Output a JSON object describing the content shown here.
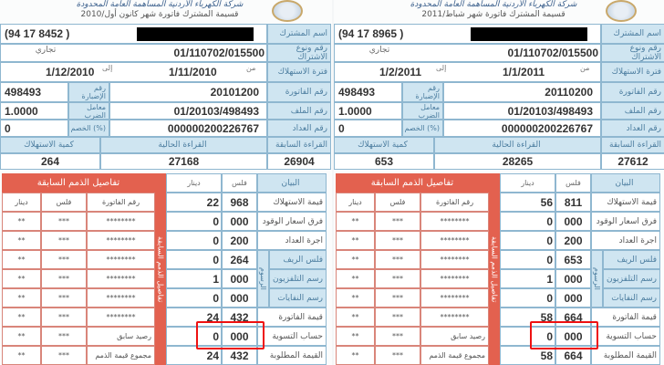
{
  "bills": [
    {
      "header": {
        "title": "شركة الكهرباء الأردنية المساهمة العامة المحدودة",
        "subtitle": "قسيمة المشترك فاتورة شهر كانون أول/2010"
      },
      "labels": {
        "name": "اسم المشترك",
        "subscription": "رقم ونوع الاشتراك",
        "period": "فترة الاستهلاك",
        "invoice": "رقم الفاتورة",
        "file": "رقم الملف",
        "meter": "رقم العداد",
        "prev_reading": "القراءة السابقة",
        "curr_reading": "القراءة الحالية",
        "consumption": "كمية الاستهلاك",
        "reading_ref": "رقم الإضبارة",
        "multiplier": "معامل الضرب",
        "discount": "الخصم (%)",
        "from": "من",
        "to": "إلى"
      },
      "phone": "(94 17 8452 )",
      "subscription_no": "01/110702/015500",
      "subscription_type": "تجاري",
      "period_from": "1/11/2010",
      "period_to": "1/12/2010",
      "invoice_no": "20101200",
      "reading_ref": "498493",
      "file_no": "01/20103/498493",
      "multiplier": "1.0000",
      "meter_no": "000000200226767",
      "discount": "0",
      "prev_reading": "26904",
      "curr_reading": "27168",
      "consumption": "264",
      "charges_headers": {
        "item": "البيان",
        "fils": "فلس",
        "dinar": "دينار",
        "fees_group": "الرسوم"
      },
      "charges": [
        {
          "label": "قيمة الاستهلاك",
          "dinar": "22",
          "fils": "968"
        },
        {
          "label": "فرق اسعار الوقود",
          "dinar": "0",
          "fils": "000"
        },
        {
          "label": "اجرة العداد",
          "dinar": "0",
          "fils": "200"
        },
        {
          "label": "فلس الريف",
          "dinar": "0",
          "fils": "264"
        },
        {
          "label": "رسم التلفزيون",
          "dinar": "1",
          "fils": "000"
        },
        {
          "label": "رسم النفايات",
          "dinar": "0",
          "fils": "000"
        },
        {
          "label": "قيمة الفاتورة",
          "dinar": "24",
          "fils": "432"
        },
        {
          "label": "حساب التسوية",
          "dinar": "0",
          "fils": "000"
        },
        {
          "label": "القيمة المطلوبة",
          "dinar": "24",
          "fils": "432"
        }
      ],
      "dues": {
        "title": "تفاصيل الذمم السابقة",
        "side_label": "تفاصيل الذمم السابقة",
        "headers": {
          "invoice": "رقم الفاتورة",
          "fils": "فلس",
          "dinar": "دينار"
        },
        "rows": [
          {
            "invoice": "********",
            "fils": "***",
            "dinar": "**"
          },
          {
            "invoice": "********",
            "fils": "***",
            "dinar": "**"
          },
          {
            "invoice": "********",
            "fils": "***",
            "dinar": "**"
          },
          {
            "invoice": "********",
            "fils": "***",
            "dinar": "**"
          },
          {
            "invoice": "********",
            "fils": "***",
            "dinar": "**"
          },
          {
            "invoice": "********",
            "fils": "***",
            "dinar": "**"
          },
          {
            "invoice": "رصيد سابق",
            "fils": "***",
            "dinar": "**"
          },
          {
            "invoice": "مجموع قيمة الذمم",
            "fils": "***",
            "dinar": "**"
          }
        ]
      }
    },
    {
      "header": {
        "title": "شركة الكهرباء الأردنية المساهمة العامة المحدودة",
        "subtitle": "قسيمة المشترك فاتورة شهر شباط/2011"
      },
      "labels": {
        "name": "اسم المشترك",
        "subscription": "رقم ونوع الاشتراك",
        "period": "فترة الاستهلاك",
        "invoice": "رقم الفاتورة",
        "file": "رقم الملف",
        "meter": "رقم العداد",
        "prev_reading": "القراءة السابقة",
        "curr_reading": "القراءة الحالية",
        "consumption": "كمية الاستهلاك",
        "reading_ref": "رقم الإضبارة",
        "multiplier": "معامل الضرب",
        "discount": "الخصم (%)",
        "from": "من",
        "to": "إلى"
      },
      "phone": "(94 17 8965 )",
      "subscription_no": "01/110702/015500",
      "subscription_type": "تجاري",
      "period_from": "1/1/2011",
      "period_to": "1/2/2011",
      "invoice_no": "20110200",
      "reading_ref": "498493",
      "file_no": "01/20103/498493",
      "multiplier": "1.0000",
      "meter_no": "000000200226767",
      "discount": "0",
      "prev_reading": "27612",
      "curr_reading": "28265",
      "consumption": "653",
      "charges_headers": {
        "item": "البيان",
        "fils": "فلس",
        "dinar": "دينار",
        "fees_group": "الرسوم"
      },
      "charges": [
        {
          "label": "قيمة الاستهلاك",
          "dinar": "56",
          "fils": "811"
        },
        {
          "label": "فرق اسعار الوقود",
          "dinar": "0",
          "fils": "000"
        },
        {
          "label": "اجرة العداد",
          "dinar": "0",
          "fils": "200"
        },
        {
          "label": "فلس الريف",
          "dinar": "0",
          "fils": "653"
        },
        {
          "label": "رسم التلفزيون",
          "dinar": "1",
          "fils": "000"
        },
        {
          "label": "رسم النفايات",
          "dinar": "0",
          "fils": "000"
        },
        {
          "label": "قيمة الفاتورة",
          "dinar": "58",
          "fils": "664"
        },
        {
          "label": "حساب التسوية",
          "dinar": "0",
          "fils": "000"
        },
        {
          "label": "القيمة المطلوبة",
          "dinar": "58",
          "fils": "664"
        }
      ],
      "dues": {
        "title": "تفاصيل الذمم السابقة",
        "side_label": "تفاصيل الذمم السابقة",
        "headers": {
          "invoice": "رقم الفاتورة",
          "fils": "فلس",
          "dinar": "دينار"
        },
        "rows": [
          {
            "invoice": "********",
            "fils": "***",
            "dinar": "**"
          },
          {
            "invoice": "********",
            "fils": "***",
            "dinar": "**"
          },
          {
            "invoice": "********",
            "fils": "***",
            "dinar": "**"
          },
          {
            "invoice": "********",
            "fils": "***",
            "dinar": "**"
          },
          {
            "invoice": "********",
            "fils": "***",
            "dinar": "**"
          },
          {
            "invoice": "********",
            "fils": "***",
            "dinar": "**"
          },
          {
            "invoice": "رصيد سابق",
            "fils": "***",
            "dinar": "**"
          },
          {
            "invoice": "مجموع قيمة الذمم",
            "fils": "***",
            "dinar": "**"
          }
        ]
      }
    }
  ]
}
